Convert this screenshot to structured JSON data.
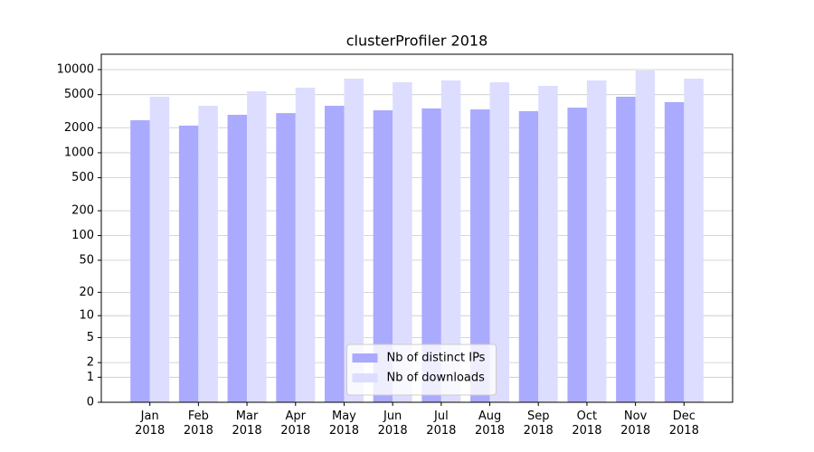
{
  "chart_data": {
    "type": "bar",
    "title": "clusterProfiler 2018",
    "categories": [
      "Jan\n2018",
      "Feb\n2018",
      "Mar\n2018",
      "Apr\n2018",
      "May\n2018",
      "Jun\n2018",
      "Jul\n2018",
      "Aug\n2018",
      "Sep\n2018",
      "Oct\n2018",
      "Nov\n2018",
      "Dec\n2018"
    ],
    "series": [
      {
        "name": "Nb of distinct IPs",
        "color": "#aaaaff",
        "values": [
          2460,
          2120,
          2860,
          3000,
          3670,
          3240,
          3410,
          3320,
          3160,
          3490,
          4720,
          4060
        ]
      },
      {
        "name": "Nb of downloads",
        "color": "#ddddff",
        "values": [
          4720,
          3670,
          5480,
          6060,
          7780,
          7040,
          7410,
          7040,
          6370,
          7410,
          9750,
          7780
        ]
      }
    ],
    "yscale": "symlog",
    "ylim": [
      0,
      15300
    ],
    "yticks": [
      0,
      1,
      2,
      5,
      10,
      20,
      50,
      100,
      200,
      500,
      1000,
      2000,
      5000,
      10000
    ],
    "grid": true,
    "legend": "lower center"
  }
}
